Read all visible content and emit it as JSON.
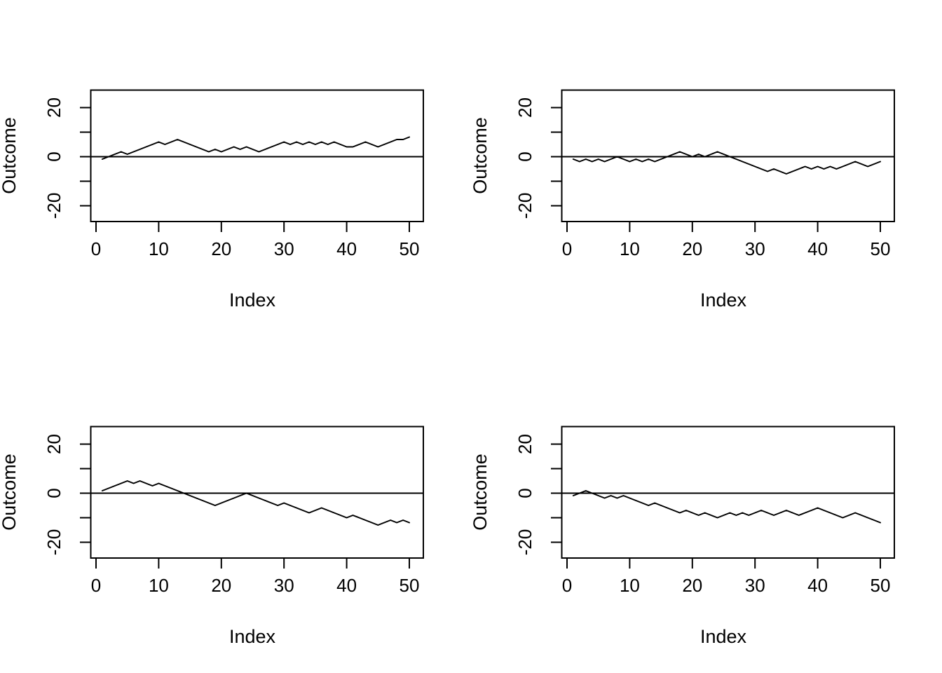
{
  "figure": {
    "background": "#ffffff",
    "foreground": "#000000",
    "layout": "2x2 grid of R base line plots of random walks",
    "panel_names": [
      "top-left",
      "top-right",
      "bottom-left",
      "bottom-right"
    ]
  },
  "chart_data": [
    {
      "type": "line",
      "title": "",
      "xlabel": "Index",
      "ylabel": "Outcome",
      "x_ticks": [
        0,
        10,
        20,
        30,
        40,
        50
      ],
      "y_ticks_all": [
        -20,
        -10,
        0,
        10,
        20
      ],
      "y_ticks_labeled": [
        -20,
        0,
        20
      ],
      "xlim": [
        -1,
        53
      ],
      "ylim": [
        -27,
        27
      ],
      "reference_line_y": 0,
      "line_color": "#000000",
      "x_start": 1,
      "values": [
        -1,
        0,
        1,
        2,
        1,
        2,
        3,
        4,
        5,
        6,
        5,
        6,
        7,
        6,
        5,
        4,
        3,
        2,
        3,
        2,
        3,
        4,
        3,
        4,
        3,
        2,
        3,
        4,
        5,
        6,
        5,
        6,
        5,
        6,
        5,
        6,
        5,
        6,
        5,
        4,
        4,
        5,
        6,
        5,
        4,
        5,
        6,
        7,
        7,
        8
      ]
    },
    {
      "type": "line",
      "title": "",
      "xlabel": "Index",
      "ylabel": "Outcome",
      "x_ticks": [
        0,
        10,
        20,
        30,
        40,
        50
      ],
      "y_ticks_all": [
        -20,
        -10,
        0,
        10,
        20
      ],
      "y_ticks_labeled": [
        -20,
        0,
        20
      ],
      "xlim": [
        -1,
        53
      ],
      "ylim": [
        -27,
        27
      ],
      "reference_line_y": 0,
      "line_color": "#000000",
      "x_start": 1,
      "values": [
        -1,
        -2,
        -1,
        -2,
        -1,
        -2,
        -1,
        0,
        -1,
        -2,
        -1,
        -2,
        -1,
        -2,
        -1,
        0,
        1,
        2,
        1,
        0,
        1,
        0,
        1,
        2,
        1,
        0,
        -1,
        -2,
        -3,
        -4,
        -5,
        -6,
        -5,
        -6,
        -7,
        -6,
        -5,
        -4,
        -5,
        -4,
        -5,
        -4,
        -5,
        -4,
        -3,
        -2,
        -3,
        -4,
        -3,
        -2
      ]
    },
    {
      "type": "line",
      "title": "",
      "xlabel": "Index",
      "ylabel": "Outcome",
      "x_ticks": [
        0,
        10,
        20,
        30,
        40,
        50
      ],
      "y_ticks_all": [
        -20,
        -10,
        0,
        10,
        20
      ],
      "y_ticks_labeled": [
        -20,
        0,
        20
      ],
      "xlim": [
        -1,
        53
      ],
      "ylim": [
        -27,
        27
      ],
      "reference_line_y": 0,
      "line_color": "#000000",
      "x_start": 1,
      "values": [
        1,
        2,
        3,
        4,
        5,
        4,
        5,
        4,
        3,
        4,
        3,
        2,
        1,
        0,
        -1,
        -2,
        -3,
        -4,
        -5,
        -4,
        -3,
        -2,
        -1,
        0,
        -1,
        -2,
        -3,
        -4,
        -5,
        -4,
        -5,
        -6,
        -7,
        -8,
        -7,
        -6,
        -7,
        -8,
        -9,
        -10,
        -9,
        -10,
        -11,
        -12,
        -13,
        -12,
        -11,
        -12,
        -11,
        -12
      ]
    },
    {
      "type": "line",
      "title": "",
      "xlabel": "Index",
      "ylabel": "Outcome",
      "x_ticks": [
        0,
        10,
        20,
        30,
        40,
        50
      ],
      "y_ticks_all": [
        -20,
        -10,
        0,
        10,
        20
      ],
      "y_ticks_labeled": [
        -20,
        0,
        20
      ],
      "xlim": [
        -1,
        53
      ],
      "ylim": [
        -27,
        27
      ],
      "reference_line_y": 0,
      "line_color": "#000000",
      "x_start": 1,
      "values": [
        -1,
        0,
        1,
        0,
        -1,
        -2,
        -1,
        -2,
        -1,
        -2,
        -3,
        -4,
        -5,
        -4,
        -5,
        -6,
        -7,
        -8,
        -7,
        -8,
        -9,
        -8,
        -9,
        -10,
        -9,
        -8,
        -9,
        -8,
        -9,
        -8,
        -7,
        -8,
        -9,
        -8,
        -7,
        -8,
        -9,
        -8,
        -7,
        -6,
        -7,
        -8,
        -9,
        -10,
        -9,
        -8,
        -9,
        -10,
        -11,
        -12
      ]
    }
  ]
}
